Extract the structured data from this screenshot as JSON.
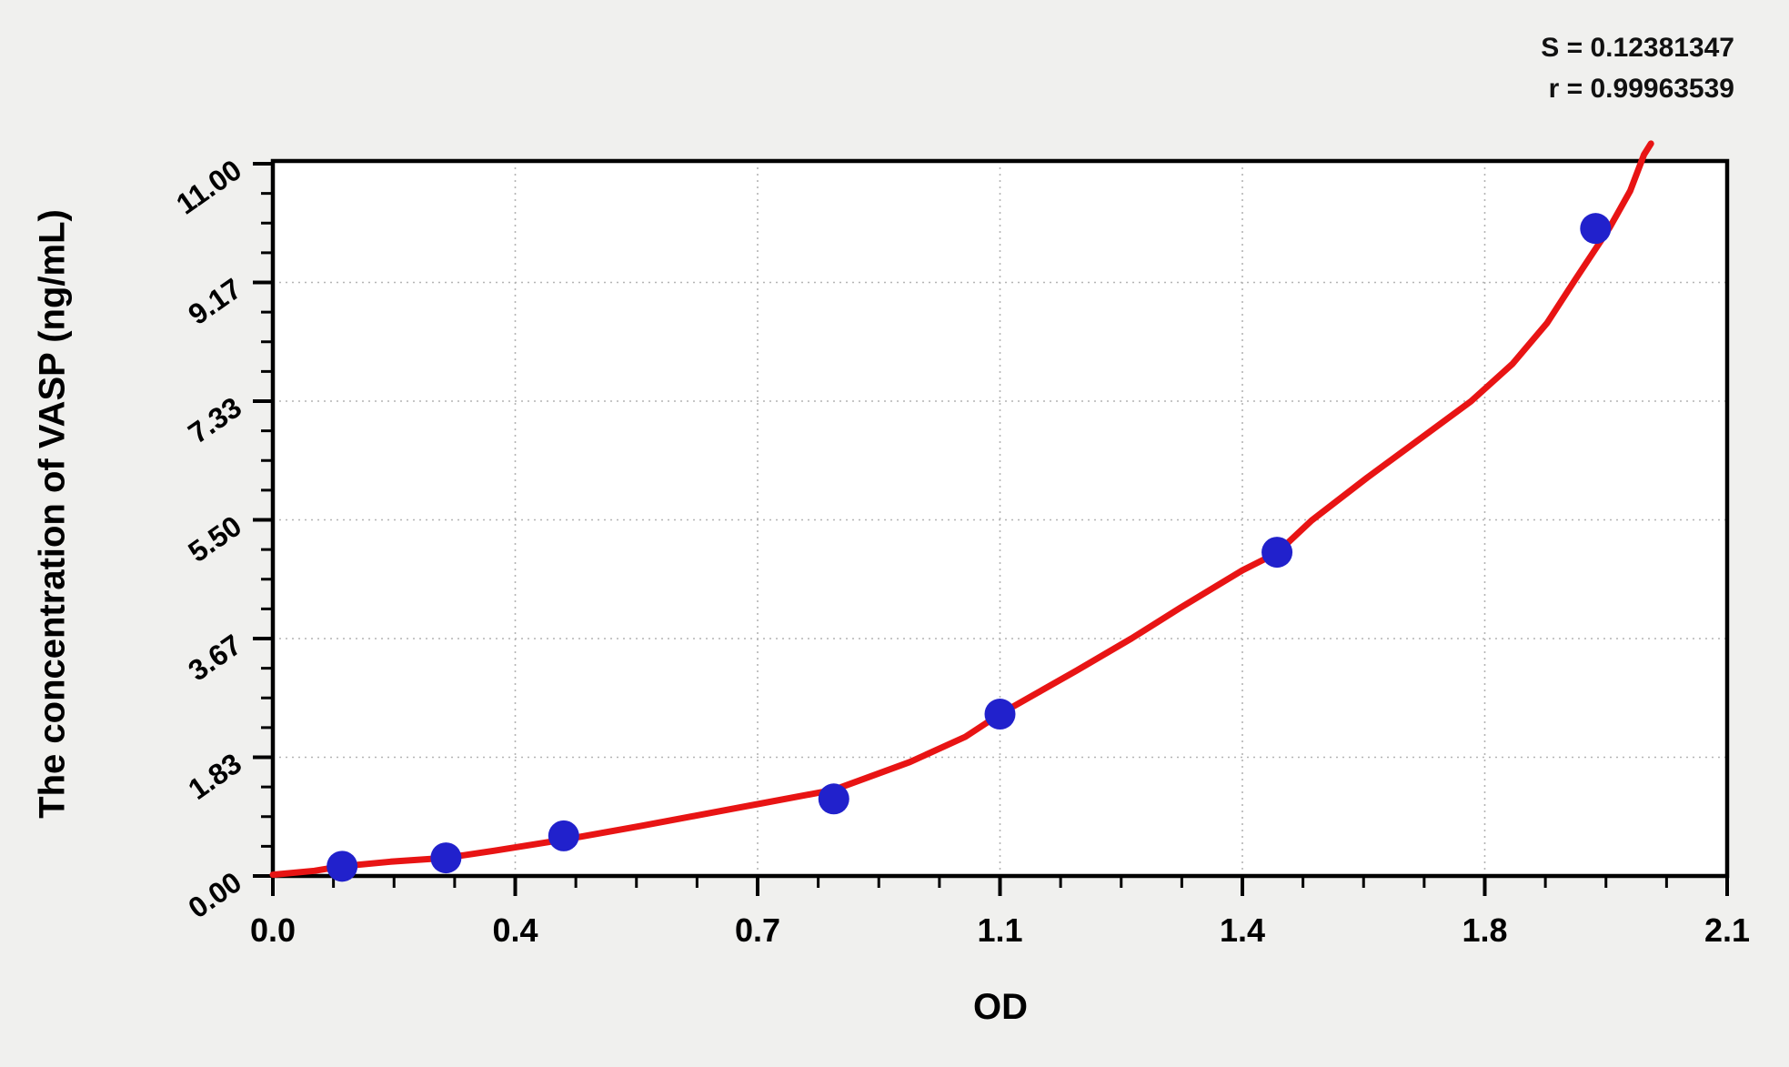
{
  "page": {
    "background": "#f0f0ee"
  },
  "stats": {
    "s": "S = 0.12381347",
    "r": "r = 0.99963539"
  },
  "chart_data": {
    "type": "scatter",
    "title": "",
    "xlabel": "OD",
    "ylabel": "The concentration of VASP (ng/mL)",
    "xlim": [
      0,
      2.1
    ],
    "ylim": [
      0,
      11
    ],
    "x_ticks": [
      0,
      0.35,
      0.7,
      1.05,
      1.4,
      1.75,
      2.1
    ],
    "x_tick_labels": [
      "0.0",
      "0.4",
      "0.7",
      "1.1",
      "1.4",
      "1.8",
      "2.1"
    ],
    "y_ticks": [
      0,
      1.8333,
      3.6667,
      5.5,
      7.3333,
      9.1667,
      11
    ],
    "y_tick_labels": [
      "0.00",
      "1.83",
      "3.67",
      "5.50",
      "7.33",
      "9.17",
      "11.00"
    ],
    "minor_ticks_per_interval": 3,
    "grid": "dashed",
    "colors": {
      "page_bg": "#f0f0ee",
      "plot_bg": "#ffffff",
      "frame": "#000000",
      "grid": "#b4b4b4",
      "curve": "#e81414",
      "points": "#2121cc"
    },
    "series": [
      {
        "name": "standard-points",
        "kind": "scatter",
        "color": "#2121cc",
        "marker_radius": 17,
        "points": [
          [
            0.1,
            0.15
          ],
          [
            0.25,
            0.28
          ],
          [
            0.42,
            0.62
          ],
          [
            0.81,
            1.19
          ],
          [
            1.05,
            2.5
          ],
          [
            1.45,
            5.0
          ],
          [
            1.91,
            10.0
          ]
        ]
      },
      {
        "name": "fitted-curve",
        "kind": "line",
        "color": "#e81414",
        "stroke_width": 7,
        "points": [
          [
            0.0,
            0.02
          ],
          [
            0.06,
            0.08
          ],
          [
            0.1,
            0.15
          ],
          [
            0.17,
            0.22
          ],
          [
            0.25,
            0.28
          ],
          [
            0.32,
            0.39
          ],
          [
            0.42,
            0.56
          ],
          [
            0.53,
            0.77
          ],
          [
            0.61,
            0.93
          ],
          [
            0.7,
            1.11
          ],
          [
            0.81,
            1.33
          ],
          [
            0.92,
            1.76
          ],
          [
            1.0,
            2.15
          ],
          [
            1.05,
            2.5
          ],
          [
            1.16,
            3.17
          ],
          [
            1.24,
            3.67
          ],
          [
            1.31,
            4.14
          ],
          [
            1.4,
            4.72
          ],
          [
            1.45,
            4.99
          ],
          [
            1.5,
            5.49
          ],
          [
            1.58,
            6.15
          ],
          [
            1.66,
            6.78
          ],
          [
            1.73,
            7.33
          ],
          [
            1.79,
            7.91
          ],
          [
            1.84,
            8.54
          ],
          [
            1.88,
            9.2
          ],
          [
            1.93,
            10.01
          ],
          [
            1.96,
            10.58
          ],
          [
            1.98,
            11.14
          ],
          [
            1.99,
            11.31
          ]
        ]
      }
    ]
  }
}
